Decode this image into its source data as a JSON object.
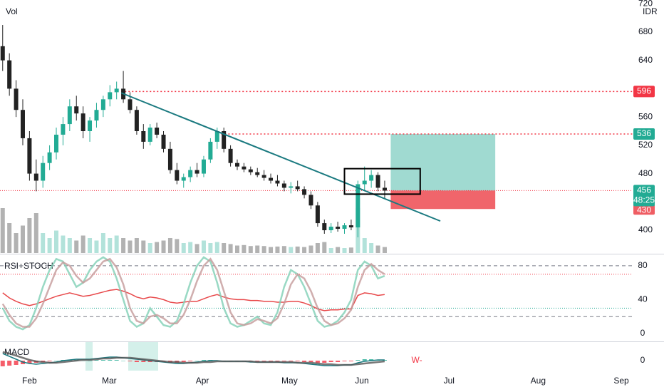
{
  "chart_data": {
    "type": "candlestick",
    "currency": "IDR",
    "volume_label": "Vol",
    "up_color": "#22ab94",
    "down_color": "#222222",
    "xlim": [
      -0.4,
      94
    ],
    "xticks": [
      {
        "value": 4.0,
        "label": "Feb"
      },
      {
        "value": 15.9,
        "label": "Mar"
      },
      {
        "value": 29.8,
        "label": "Apr"
      },
      {
        "value": 42.8,
        "label": "May"
      },
      {
        "value": 53.6,
        "label": "Jun"
      },
      {
        "value": 66.6,
        "label": "Jul"
      },
      {
        "value": 79.9,
        "label": "Aug"
      },
      {
        "value": 92.3,
        "label": "Sep"
      }
    ],
    "ylim": [
      367.8,
      725.3
    ],
    "yticks": [
      400,
      480,
      520,
      560,
      640,
      680,
      720
    ],
    "ohlc": [
      [
        660,
        690,
        625,
        640
      ],
      [
        640,
        650,
        590,
        600
      ],
      [
        600,
        612,
        560,
        570
      ],
      [
        570,
        585,
        520,
        530
      ],
      [
        530,
        540,
        470,
        480
      ],
      [
        480,
        500,
        455,
        470
      ],
      [
        470,
        505,
        460,
        495
      ],
      [
        495,
        520,
        485,
        510
      ],
      [
        510,
        545,
        500,
        535
      ],
      [
        535,
        560,
        520,
        550
      ],
      [
        550,
        585,
        540,
        575
      ],
      [
        575,
        590,
        555,
        565
      ],
      [
        565,
        575,
        530,
        540
      ],
      [
        540,
        560,
        525,
        555
      ],
      [
        555,
        580,
        545,
        570
      ],
      [
        570,
        590,
        560,
        585
      ],
      [
        585,
        605,
        575,
        595
      ],
      [
        595,
        610,
        585,
        600
      ],
      [
        600,
        625,
        580,
        585
      ],
      [
        585,
        595,
        565,
        570
      ],
      [
        570,
        575,
        535,
        540
      ],
      [
        540,
        550,
        515,
        525
      ],
      [
        525,
        550,
        520,
        545
      ],
      [
        545,
        552,
        530,
        535
      ],
      [
        535,
        540,
        510,
        515
      ],
      [
        515,
        525,
        480,
        485
      ],
      [
        485,
        495,
        465,
        470
      ],
      [
        470,
        480,
        460,
        475
      ],
      [
        475,
        490,
        468,
        485
      ],
      [
        485,
        495,
        475,
        480
      ],
      [
        480,
        505,
        475,
        500
      ],
      [
        500,
        530,
        495,
        525
      ],
      [
        525,
        545,
        515,
        540
      ],
      [
        540,
        545,
        510,
        515
      ],
      [
        515,
        520,
        490,
        495
      ],
      [
        495,
        500,
        485,
        490
      ],
      [
        490,
        495,
        482,
        486
      ],
      [
        486,
        490,
        478,
        482
      ],
      [
        482,
        488,
        475,
        478
      ],
      [
        478,
        485,
        470,
        474
      ],
      [
        474,
        480,
        466,
        470
      ],
      [
        470,
        478,
        462,
        466
      ],
      [
        466,
        470,
        455,
        460
      ],
      [
        460,
        468,
        452,
        462
      ],
      [
        462,
        470,
        455,
        458
      ],
      [
        458,
        462,
        445,
        450
      ],
      [
        450,
        455,
        430,
        435
      ],
      [
        435,
        440,
        405,
        410
      ],
      [
        410,
        415,
        395,
        400
      ],
      [
        400,
        410,
        396,
        405
      ],
      [
        405,
        412,
        398,
        402
      ],
      [
        402,
        410,
        395,
        407
      ],
      [
        407,
        415,
        400,
        404
      ],
      [
        404,
        470,
        390,
        465
      ],
      [
        465,
        490,
        455,
        470
      ],
      [
        470,
        485,
        460,
        478
      ],
      [
        478,
        482,
        455,
        460
      ],
      [
        460,
        470,
        445,
        456
      ]
    ],
    "volume": [
      90,
      60,
      40,
      55,
      70,
      80,
      40,
      30,
      45,
      35,
      30,
      25,
      35,
      30,
      25,
      40,
      30,
      35,
      30,
      25,
      30,
      25,
      20,
      22,
      25,
      30,
      28,
      20,
      22,
      18,
      25,
      20,
      22,
      20,
      18,
      15,
      16,
      14,
      15,
      14,
      12,
      13,
      14,
      12,
      13,
      12,
      15,
      20,
      22,
      10,
      12,
      10,
      11,
      90,
      30,
      20,
      15,
      12
    ],
    "levels": [
      {
        "value": 596,
        "x": 17.7,
        "color": "#f23645"
      },
      {
        "value": 536,
        "x": 32.6,
        "color": "#22ab94"
      }
    ],
    "last_price": {
      "value": 456,
      "countdown": "48:25",
      "color": "#22ab94"
    },
    "trendline": {
      "x": [
        17.7,
        65.3
      ],
      "y": [
        594,
        413
      ],
      "color": "#1b7a80"
    },
    "position": {
      "x": [
        57.9,
        73.5
      ],
      "target": 536,
      "entry": 456,
      "stop": 430,
      "target_color": "#8fd3c9",
      "stop_color": "#ef5d63"
    },
    "box": {
      "x": [
        51.0,
        62.3
      ],
      "y": [
        451,
        487
      ]
    },
    "panes": [
      {
        "title": "RSI+STOCH",
        "ylim": [
          -8.4,
          93.3
        ],
        "yticks": [
          0,
          40,
          80
        ],
        "dashed": [
          80,
          20
        ],
        "guides": [
          {
            "value": 70,
            "color": "#f23645"
          },
          {
            "value": 30,
            "color": "#22ab94"
          }
        ],
        "series": [
          {
            "color": "#e8484a",
            "values": [
              48,
              42,
              38,
              35,
              33,
              35,
              38,
              41,
              44,
              46,
              48,
              46,
              44,
              45,
              47,
              49,
              51,
              52,
              50,
              47,
              43,
              41,
              43,
              42,
              40,
              37,
              36,
              37,
              38,
              38,
              41,
              44,
              46,
              43,
              41,
              40,
              40,
              39,
              39,
              38,
              38,
              37,
              37,
              38,
              38,
              36,
              33,
              29,
              27,
              28,
              28,
              29,
              29,
              45,
              48,
              47,
              45,
              46
            ]
          },
          {
            "color": "#7fcfb5",
            "values": [
              30,
              15,
              8,
              5,
              10,
              30,
              55,
              75,
              88,
              85,
              70,
              55,
              60,
              75,
              85,
              90,
              85,
              65,
              40,
              15,
              8,
              12,
              30,
              20,
              10,
              8,
              15,
              35,
              60,
              80,
              90,
              85,
              60,
              30,
              12,
              8,
              10,
              15,
              20,
              12,
              10,
              25,
              55,
              75,
              70,
              55,
              35,
              15,
              8,
              10,
              15,
              25,
              40,
              75,
              85,
              80,
              65,
              68
            ]
          },
          {
            "color": "#c49a9a",
            "values": [
              35,
              22,
              12,
              8,
              8,
              18,
              35,
              55,
              75,
              84,
              80,
              68,
              60,
              65,
              75,
              85,
              88,
              78,
              58,
              30,
              15,
              12,
              20,
              22,
              18,
              12,
              12,
              22,
              40,
              62,
              80,
              88,
              75,
              50,
              25,
              12,
              10,
              12,
              17,
              15,
              12,
              18,
              35,
              58,
              70,
              65,
              50,
              30,
              15,
              10,
              12,
              18,
              28,
              55,
              75,
              82,
              75,
              70
            ]
          }
        ]
      },
      {
        "title": "MACD",
        "ylim": [
          -14,
          26
        ],
        "yticks": [
          0
        ],
        "histogram": [
          -8,
          -7,
          -6,
          -5,
          -4,
          -3,
          -2,
          -1,
          0,
          1,
          1,
          1,
          0,
          0,
          1,
          1,
          1,
          1,
          0,
          -1,
          -2,
          -2,
          -2,
          -2,
          -2,
          -3,
          -3,
          -2,
          -1,
          0,
          1,
          1,
          0,
          -1,
          -1,
          -1,
          -1,
          -1,
          -1,
          -1,
          -1,
          -1,
          -1,
          -1,
          -1,
          -2,
          -2,
          -3,
          -3,
          -2,
          -2,
          -1,
          -1,
          1,
          2,
          2,
          1,
          1
        ],
        "series": [
          {
            "color": "#1b7a80",
            "values": [
              10,
              6,
              2,
              -2,
              -4,
              -5,
              -4,
              -3,
              -2,
              0,
              1,
              2,
              2,
              2,
              3,
              4,
              5,
              5,
              4,
              3,
              2,
              1,
              0,
              -1,
              -2,
              -3,
              -4,
              -4,
              -3,
              -2,
              -1,
              0,
              0,
              -1,
              -1,
              -1,
              -1,
              -2,
              -2,
              -2,
              -2,
              -2,
              -3,
              -3,
              -3,
              -4,
              -5,
              -6,
              -7,
              -7,
              -7,
              -6,
              -6,
              -3,
              -1,
              0,
              1,
              1
            ]
          },
          {
            "color": "#555555",
            "values": [
              12,
              10,
              7,
              4,
              1,
              -1,
              -2,
              -3,
              -3,
              -2,
              -1,
              0,
              1,
              1,
              2,
              3,
              3,
              4,
              4,
              4,
              3,
              2,
              1,
              0,
              -1,
              -2,
              -2,
              -3,
              -3,
              -3,
              -2,
              -2,
              -1,
              -1,
              -1,
              -1,
              -1,
              -1,
              -2,
              -2,
              -2,
              -2,
              -2,
              -2,
              -3,
              -3,
              -3,
              -4,
              -5,
              -5,
              -6,
              -6,
              -6,
              -5,
              -4,
              -3,
              -2,
              -1
            ]
          }
        ],
        "annotation": {
          "text": "W-",
          "x": 61.8,
          "y": 0,
          "color": "#f23645"
        }
      }
    ]
  }
}
